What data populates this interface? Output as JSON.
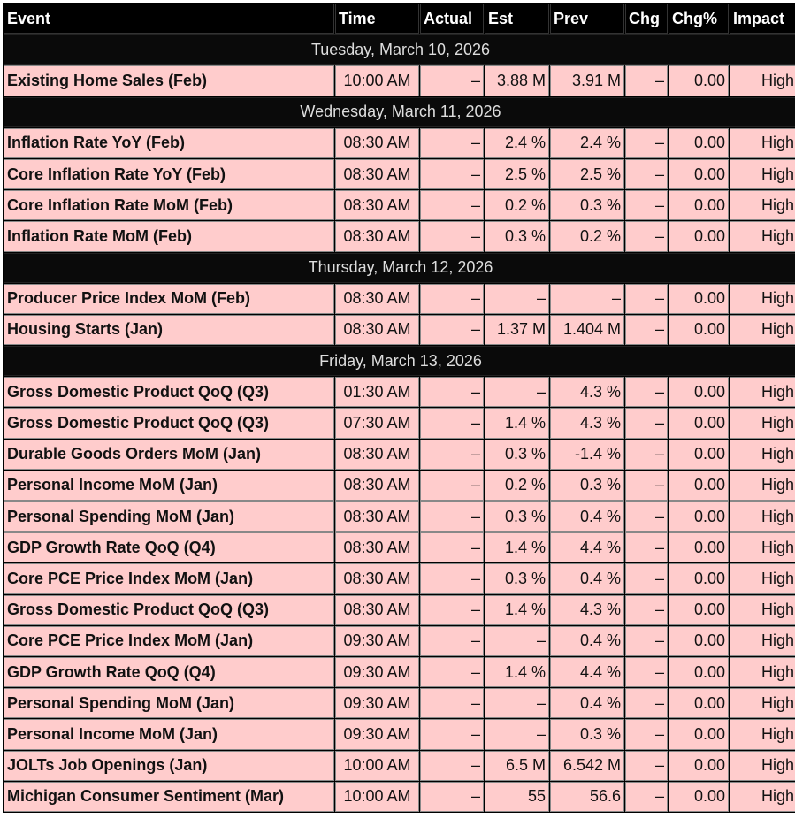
{
  "headers": [
    "Event",
    "Time",
    "Actual",
    "Est",
    "Prev",
    "Chg",
    "Chg%",
    "Impact"
  ],
  "days": [
    {
      "date": "Tuesday, March 10, 2026",
      "events": [
        [
          "Existing Home Sales (Feb)",
          "10:00 AM",
          "–",
          "3.88 M",
          "3.91 M",
          "–",
          "0.00",
          "High"
        ]
      ]
    },
    {
      "date": "Wednesday, March 11, 2026",
      "events": [
        [
          "Inflation Rate YoY (Feb)",
          "08:30 AM",
          "–",
          "2.4 %",
          "2.4 %",
          "–",
          "0.00",
          "High"
        ],
        [
          "Core Inflation Rate YoY (Feb)",
          "08:30 AM",
          "–",
          "2.5 %",
          "2.5 %",
          "–",
          "0.00",
          "High"
        ],
        [
          "Core Inflation Rate MoM (Feb)",
          "08:30 AM",
          "–",
          "0.2 %",
          "0.3 %",
          "–",
          "0.00",
          "High"
        ],
        [
          "Inflation Rate MoM (Feb)",
          "08:30 AM",
          "–",
          "0.3 %",
          "0.2 %",
          "–",
          "0.00",
          "High"
        ]
      ]
    },
    {
      "date": "Thursday, March 12, 2026",
      "events": [
        [
          "Producer Price Index MoM (Feb)",
          "08:30 AM",
          "–",
          "–",
          "–",
          "–",
          "0.00",
          "High"
        ],
        [
          "Housing Starts (Jan)",
          "08:30 AM",
          "–",
          "1.37 M",
          "1.404 M",
          "–",
          "0.00",
          "High"
        ]
      ]
    },
    {
      "date": "Friday, March 13, 2026",
      "events": [
        [
          "Gross Domestic Product QoQ (Q3)",
          "01:30 AM",
          "–",
          "–",
          "4.3 %",
          "–",
          "0.00",
          "High"
        ],
        [
          "Gross Domestic Product QoQ (Q3)",
          "07:30 AM",
          "–",
          "1.4 %",
          "4.3 %",
          "–",
          "0.00",
          "High"
        ],
        [
          "Durable Goods Orders MoM (Jan)",
          "08:30 AM",
          "–",
          "0.3 %",
          "-1.4 %",
          "–",
          "0.00",
          "High"
        ],
        [
          "Personal Income MoM (Jan)",
          "08:30 AM",
          "–",
          "0.2 %",
          "0.3 %",
          "–",
          "0.00",
          "High"
        ],
        [
          "Personal Spending MoM (Jan)",
          "08:30 AM",
          "–",
          "0.3 %",
          "0.4 %",
          "–",
          "0.00",
          "High"
        ],
        [
          "GDP Growth Rate QoQ (Q4)",
          "08:30 AM",
          "–",
          "1.4 %",
          "4.4 %",
          "–",
          "0.00",
          "High"
        ],
        [
          "Core PCE Price Index MoM (Jan)",
          "08:30 AM",
          "–",
          "0.3 %",
          "0.4 %",
          "–",
          "0.00",
          "High"
        ],
        [
          "Gross Domestic Product QoQ (Q3)",
          "08:30 AM",
          "–",
          "1.4 %",
          "4.3 %",
          "–",
          "0.00",
          "High"
        ],
        [
          "Core PCE Price Index MoM (Jan)",
          "09:30 AM",
          "–",
          "–",
          "0.4 %",
          "–",
          "0.00",
          "High"
        ],
        [
          "GDP Growth Rate QoQ (Q4)",
          "09:30 AM",
          "–",
          "1.4 %",
          "4.4 %",
          "–",
          "0.00",
          "High"
        ],
        [
          "Personal Spending MoM (Jan)",
          "09:30 AM",
          "–",
          "–",
          "0.4 %",
          "–",
          "0.00",
          "High"
        ],
        [
          "Personal Income MoM (Jan)",
          "09:30 AM",
          "–",
          "–",
          "0.3 %",
          "–",
          "0.00",
          "High"
        ],
        [
          "JOLTs Job Openings (Jan)",
          "10:00 AM",
          "–",
          "6.5 M",
          "6.542 M",
          "–",
          "0.00",
          "High"
        ],
        [
          "Michigan Consumer Sentiment (Mar)",
          "10:00 AM",
          "–",
          "55",
          "56.6",
          "–",
          "0.00",
          "High"
        ]
      ]
    }
  ]
}
